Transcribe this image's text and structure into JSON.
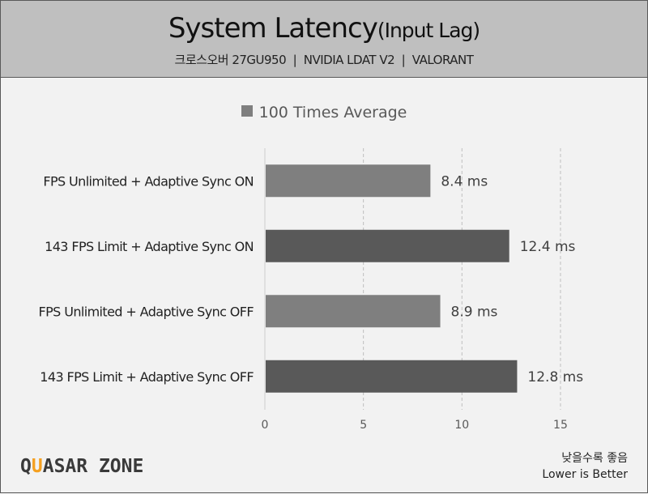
{
  "header": {
    "title_main": "System Latency",
    "title_paren": "(Input Lag)",
    "subtitle": "크로스오버 27GU950  |  NVIDIA LDAT V2  |  VALORANT"
  },
  "footer": {
    "logo": "QUASAR ZONE",
    "note_ko": "낮을수록 좋음",
    "note_en": "Lower is Better"
  },
  "chart_data": {
    "type": "bar",
    "orientation": "horizontal",
    "title": "System Latency(Input Lag)",
    "categories": [
      "FPS Unlimited + Adaptive Sync ON",
      "143 FPS Limit + Adaptive Sync ON",
      "FPS Unlimited + Adaptive Sync OFF",
      "143 FPS Limit + Adaptive Sync OFF"
    ],
    "series": [
      {
        "name": "100 Times Average",
        "values": [
          8.4,
          12.4,
          8.9,
          12.8
        ]
      }
    ],
    "data_labels": [
      "8.4 ms",
      "12.4 ms",
      "8.9 ms",
      "12.8 ms"
    ],
    "bar_colors": [
      "#7f7f7f",
      "#595959",
      "#7f7f7f",
      "#595959"
    ],
    "legend_color": "#7f7f7f",
    "xticks": [
      0,
      5,
      10,
      15
    ],
    "xlim": [
      0,
      18.5
    ],
    "grid": "vertical dashed",
    "legend_position": "top"
  }
}
